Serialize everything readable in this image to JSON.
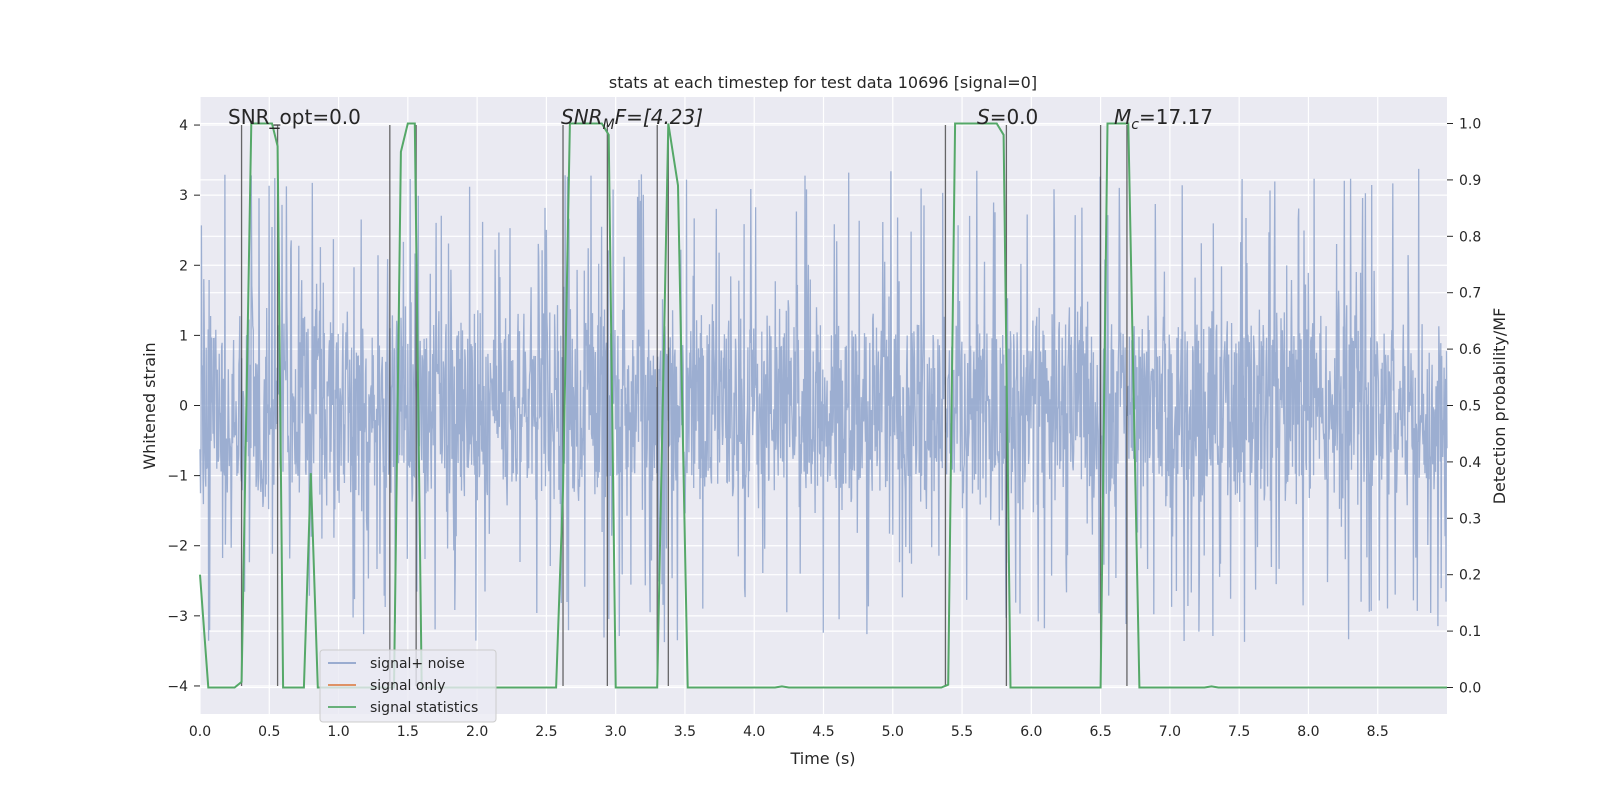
{
  "chart_data": {
    "type": "line",
    "title": "stats at each timestep for test data 10696 [signal=0]",
    "xlabel": "Time (s)",
    "ylabel": "Whitened strain",
    "y2label": "Detection probability/MF",
    "xlim": [
      0.0,
      9.0
    ],
    "ylim": [
      -4.4,
      4.4
    ],
    "y2lim": [
      -0.047,
      1.047
    ],
    "xticks": [
      "0.0",
      "0.5",
      "1.0",
      "1.5",
      "2.0",
      "2.5",
      "3.0",
      "3.5",
      "4.0",
      "4.5",
      "5.0",
      "5.5",
      "6.0",
      "6.5",
      "7.0",
      "7.5",
      "8.0",
      "8.5"
    ],
    "yticks": [
      "4",
      "3",
      "2",
      "1",
      "0",
      "−1",
      "−2",
      "−3",
      "−4"
    ],
    "y2ticks": [
      "1.0",
      "0.9",
      "0.8",
      "0.7",
      "0.6",
      "0.5",
      "0.4",
      "0.3",
      "0.2",
      "0.1",
      "0.0"
    ],
    "grid": true,
    "legend_position": "lower-left",
    "annotations": {
      "snr_opt": "SNR_opt=0.0",
      "snr_mf_main": "SNR",
      "snr_mf_sub": "M",
      "snr_mf_rest": "F=[4.23]",
      "s_main": "S",
      "s_rest": "=0.0",
      "mc_main": "M",
      "mc_sub": "c",
      "mc_rest": "=17.17"
    },
    "series": [
      {
        "name": "signal+ noise",
        "color": "#8ea3cb",
        "x_range": [
          0.0,
          9.0
        ],
        "typical_amplitude": 1.6,
        "max_amplitude": 4.0,
        "min_amplitude": -4.0
      },
      {
        "name": "signal only",
        "color": "#dd8452",
        "values": []
      },
      {
        "name": "signal statistics",
        "color": "#55a868",
        "axis": "right",
        "x": [
          0.0,
          0.06,
          0.25,
          0.3,
          0.37,
          0.42,
          0.47,
          0.52,
          0.56,
          0.6,
          0.62,
          0.75,
          0.8,
          0.85,
          0.88,
          1.38,
          1.4,
          1.45,
          1.5,
          1.55,
          1.6,
          1.65,
          2.5,
          2.57,
          2.62,
          2.67,
          2.74,
          2.9,
          2.95,
          3.0,
          3.03,
          3.25,
          3.3,
          3.38,
          3.45,
          3.52,
          3.6,
          4.15,
          4.2,
          4.25,
          5.35,
          5.4,
          5.45,
          5.5,
          5.75,
          5.8,
          5.85,
          5.88,
          6.45,
          6.5,
          6.55,
          6.6,
          6.7,
          6.78,
          6.84,
          7.25,
          7.3,
          7.35,
          9.0
        ],
        "values": [
          0.2,
          0.0,
          0.0,
          0.01,
          1.0,
          1.0,
          1.0,
          1.0,
          0.96,
          0.0,
          0.0,
          0.0,
          0.38,
          0.0,
          0.0,
          0.0,
          0.0,
          0.95,
          1.0,
          1.0,
          0.0,
          0.0,
          0.0,
          0.0,
          0.35,
          1.0,
          1.0,
          1.0,
          0.98,
          0.0,
          0.0,
          0.0,
          0.0,
          1.0,
          0.89,
          0.0,
          0.0,
          0.0,
          0.002,
          0.0,
          0.0,
          0.005,
          1.0,
          1.0,
          1.0,
          0.98,
          0.0,
          0.0,
          0.0,
          0.0,
          1.0,
          1.0,
          1.0,
          0.0,
          0.0,
          0.0,
          0.002,
          0.0,
          0.0
        ]
      }
    ],
    "vertical_markers": [
      0.3,
      0.56,
      1.37,
      1.56,
      2.62,
      2.94,
      3.3,
      3.38,
      5.38,
      5.82,
      6.5,
      6.69
    ]
  }
}
